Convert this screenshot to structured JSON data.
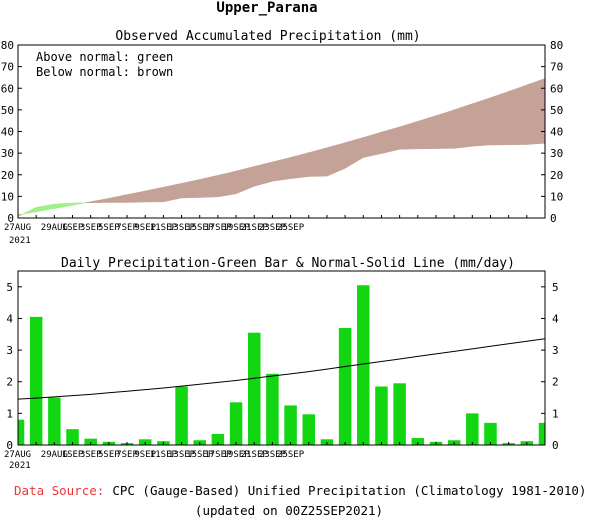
{
  "page_title": "Upper_Parana",
  "colors": {
    "above": "#a0f088",
    "below": "#c4a297",
    "bars": "#11d611",
    "normal_line": "#000000",
    "source_label": "#e8383a"
  },
  "chart_data": [
    {
      "type": "area",
      "title": "Observed Accumulated Precipitation (mm)",
      "legend": [
        "Above normal: green",
        "Below normal: brown"
      ],
      "legend_position": "top-left",
      "x_tick_labels": [
        "27AUG",
        "29AUG",
        "1SEP",
        "3SEP",
        "5SEP",
        "7SEP",
        "9SEP",
        "11SEP",
        "13SEP",
        "15SEP",
        "17SEP",
        "19SEP",
        "21SEP",
        "23SEP",
        "25SEP"
      ],
      "x_year_label": "2021",
      "ylim": [
        0,
        80
      ],
      "yticks": [
        0,
        10,
        20,
        30,
        40,
        50,
        60,
        70,
        80
      ],
      "dates": [
        "27AUG",
        "28AUG",
        "29AUG",
        "30AUG",
        "31AUG",
        "1SEP",
        "2SEP",
        "3SEP",
        "4SEP",
        "5SEP",
        "6SEP",
        "7SEP",
        "8SEP",
        "9SEP",
        "10SEP",
        "11SEP",
        "12SEP",
        "13SEP",
        "14SEP",
        "15SEP",
        "16SEP",
        "17SEP",
        "18SEP",
        "19SEP",
        "20SEP",
        "21SEP",
        "22SEP",
        "23SEP",
        "24SEP",
        "25SEP"
      ],
      "series": [
        {
          "name": "Observed",
          "values": [
            0.8,
            4.9,
            6.4,
            6.9,
            7.1,
            7.2,
            7.2,
            7.4,
            7.5,
            9.3,
            9.5,
            9.8,
            11.2,
            14.7,
            17.0,
            18.2,
            19.2,
            19.4,
            23.0,
            28.0,
            29.8,
            31.8,
            32.0,
            32.1,
            32.2,
            33.2,
            33.8,
            33.9,
            34.0,
            34.6
          ]
        },
        {
          "name": "Normal",
          "values": [
            1.4,
            2.9,
            4.4,
            5.9,
            7.5,
            9.1,
            10.8,
            12.5,
            14.2,
            16.0,
            17.8,
            19.7,
            21.7,
            23.8,
            25.9,
            28.0,
            30.2,
            32.5,
            34.8,
            37.2,
            39.7,
            42.1,
            44.7,
            47.3,
            50.0,
            52.8,
            55.6,
            58.5,
            61.5,
            64.5
          ]
        }
      ]
    },
    {
      "type": "bar",
      "title": "Daily Precipitation-Green Bar & Normal-Solid Line (mm/day)",
      "x_tick_labels": [
        "27AUG",
        "29AUG",
        "1SEP",
        "3SEP",
        "5SEP",
        "7SEP",
        "9SEP",
        "11SEP",
        "13SEP",
        "15SEP",
        "17SEP",
        "19SEP",
        "21SEP",
        "23SEP",
        "25SEP"
      ],
      "x_year_label": "2021",
      "ylim": [
        0,
        5.5
      ],
      "yticks": [
        0,
        1,
        2,
        3,
        4,
        5
      ],
      "categories": [
        "27AUG",
        "28AUG",
        "29AUG",
        "30AUG",
        "31AUG",
        "1SEP",
        "2SEP",
        "3SEP",
        "4SEP",
        "5SEP",
        "6SEP",
        "7SEP",
        "8SEP",
        "9SEP",
        "10SEP",
        "11SEP",
        "12SEP",
        "13SEP",
        "14SEP",
        "15SEP",
        "16SEP",
        "17SEP",
        "18SEP",
        "19SEP",
        "20SEP",
        "21SEP",
        "22SEP",
        "23SEP",
        "24SEP",
        "25SEP"
      ],
      "series": [
        {
          "name": "Daily precipitation",
          "values": [
            0.8,
            4.05,
            1.5,
            0.5,
            0.2,
            0.1,
            0.06,
            0.18,
            0.12,
            1.85,
            0.15,
            0.35,
            1.35,
            3.55,
            2.25,
            1.25,
            0.97,
            0.18,
            3.7,
            5.05,
            1.85,
            1.95,
            0.22,
            0.1,
            0.15,
            1.0,
            0.7,
            0.06,
            0.12,
            0.7
          ]
        },
        {
          "name": "Normal",
          "values": [
            1.45,
            1.48,
            1.52,
            1.56,
            1.6,
            1.65,
            1.7,
            1.75,
            1.8,
            1.86,
            1.92,
            1.98,
            2.04,
            2.11,
            2.18,
            2.25,
            2.32,
            2.4,
            2.48,
            2.56,
            2.64,
            2.72,
            2.8,
            2.88,
            2.96,
            3.04,
            3.12,
            3.2,
            3.28,
            3.36
          ]
        }
      ]
    }
  ],
  "footer": {
    "source_label": "Data Source:",
    "source_text": "CPC (Gauge-Based) Unified Precipitation (Climatology 1981-2010)",
    "updated": "(updated on 00Z25SEP2021)"
  }
}
